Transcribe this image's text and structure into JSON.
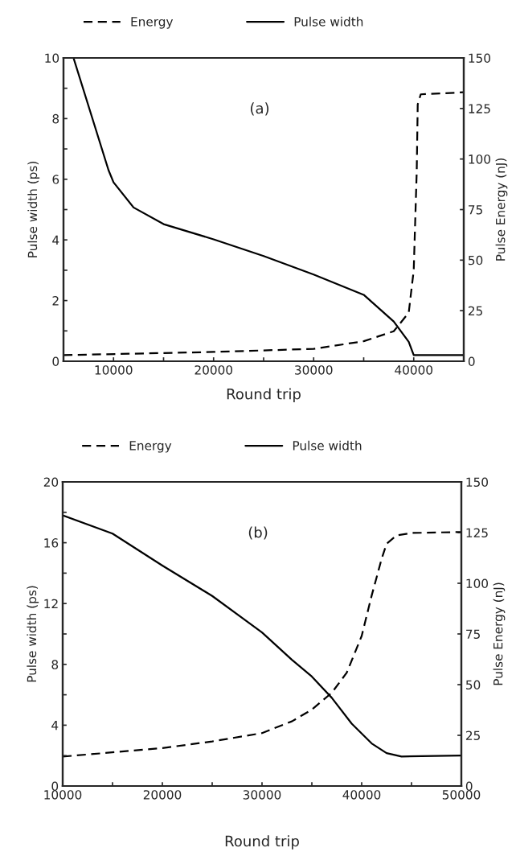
{
  "chart_data": [
    {
      "type": "line",
      "xlabel": "Round trip",
      "ylabel": "Pulse width (ps)",
      "y2label": "Pulse Energy (nJ)",
      "legend": "top",
      "annotations": [
        "(a)"
      ],
      "xlim": [
        5000,
        45000
      ],
      "xticks": [
        {
          "value": 5000,
          "label": null
        },
        10000,
        {
          "value": 15000,
          "label": null
        },
        20000,
        {
          "value": 25000,
          "label": null
        },
        30000,
        {
          "value": 35000,
          "label": null
        },
        40000
      ],
      "ylim": [
        0,
        10
      ],
      "yticks": [
        0,
        {
          "value": 1,
          "label": null
        },
        2,
        {
          "value": 3,
          "label": null
        },
        4,
        {
          "value": 5,
          "label": null
        },
        6,
        {
          "value": 7,
          "label": null
        },
        8,
        {
          "value": 9,
          "label": null
        },
        10
      ],
      "y2lim": [
        0,
        150
      ],
      "y2ticks": [
        0,
        25,
        50,
        75,
        100,
        125,
        150
      ],
      "series": [
        {
          "name": "Energy",
          "color": "#000000",
          "line_style": "dashed",
          "axis": "y2",
          "x": [
            5000,
            20000,
            30000,
            35000,
            38000,
            39500,
            40000,
            40300,
            40400,
            40700,
            45000
          ],
          "values": [
            3.0,
            4.6,
            6.1,
            9.9,
            14.8,
            24,
            45,
            94,
            127,
            132,
            133
          ]
        },
        {
          "name": "Pulse width",
          "color": "#000000",
          "line_style": "solid",
          "axis": "y",
          "x": [
            6000,
            9500,
            10000,
            12000,
            15000,
            20000,
            25000,
            30000,
            35000,
            38000,
            39500,
            40000,
            45000
          ],
          "values": [
            10,
            6.3,
            5.9,
            5.07,
            4.52,
            4.02,
            3.47,
            2.86,
            2.19,
            1.31,
            0.64,
            0.2,
            0.2
          ]
        }
      ]
    },
    {
      "type": "line",
      "xlabel": "Round trip",
      "ylabel": "Pulse width (ps)",
      "y2label": "Pulse Energy (nJ)",
      "legend": "top",
      "annotations": [
        "(b)"
      ],
      "xlim": [
        10000,
        50000
      ],
      "xticks": [
        10000,
        {
          "value": 15000,
          "label": null
        },
        20000,
        {
          "value": 25000,
          "label": null
        },
        30000,
        {
          "value": 35000,
          "label": null
        },
        40000,
        {
          "value": 45000,
          "label": null
        },
        50000
      ],
      "ylim": [
        0,
        20
      ],
      "yticks": [
        0,
        {
          "value": 2,
          "label": null
        },
        4,
        {
          "value": 6,
          "label": null
        },
        8,
        {
          "value": 10,
          "label": null
        },
        12,
        {
          "value": 14,
          "label": null
        },
        16,
        {
          "value": 18,
          "label": null
        },
        20
      ],
      "y2lim": [
        0,
        150
      ],
      "y2ticks": [
        0,
        25,
        50,
        75,
        100,
        125,
        150
      ],
      "series": [
        {
          "name": "Energy",
          "color": "#000000",
          "line_style": "dashed",
          "axis": "y2",
          "x": [
            10000,
            20000,
            25000,
            30000,
            33000,
            35000,
            37000,
            38500,
            40000,
            41000,
            42000,
            42500,
            43500,
            45000,
            50000
          ],
          "values": [
            14.5,
            18.7,
            22,
            26.1,
            31.9,
            37.7,
            46,
            55.9,
            74,
            93.9,
            112,
            119.5,
            123.6,
            124.8,
            125.3
          ]
        },
        {
          "name": "Pulse width",
          "color": "#000000",
          "line_style": "solid",
          "axis": "y",
          "x": [
            10000,
            15000,
            20000,
            25000,
            30000,
            33000,
            35000,
            37000,
            39000,
            41000,
            42500,
            44000,
            50000
          ],
          "values": [
            17.8,
            16.6,
            14.5,
            12.5,
            10.1,
            8.3,
            7.2,
            5.8,
            4.1,
            2.8,
            2.16,
            1.94,
            2.0
          ]
        }
      ]
    }
  ]
}
